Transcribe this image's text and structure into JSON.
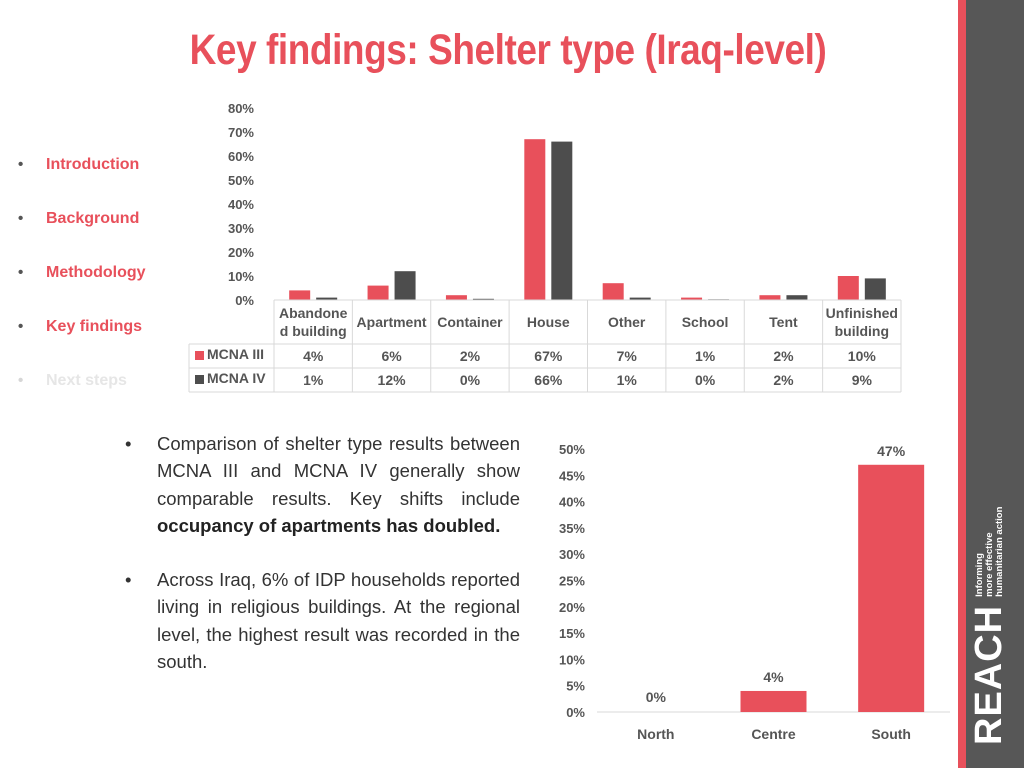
{
  "title": "Key findings: Shelter type (Iraq-level)",
  "nav": [
    {
      "label": "Introduction",
      "faded": false
    },
    {
      "label": "Background",
      "faded": false
    },
    {
      "label": "Methodology",
      "faded": false
    },
    {
      "label": "Key findings",
      "faded": false
    },
    {
      "label": "Next steps",
      "faded": true
    }
  ],
  "bullets": [
    {
      "pre": "Comparison of shelter type results between MCNA III and MCNA IV generally show comparable results.  Key shifts include ",
      "bold": "occupancy of apartments has doubled."
    },
    {
      "pre": "Across Iraq, 6% of IDP households reported living in religious buildings. At the regional level, the highest result was recorded in the south.",
      "bold": ""
    }
  ],
  "logo": {
    "main": "REACH",
    "tagline": [
      "Informing",
      "more effective",
      "humanitarian action"
    ]
  },
  "colors": {
    "accent": "#e8505b",
    "series_dark": "#4d4d4d",
    "sidebar_bar": "#575757"
  },
  "chart_data": [
    {
      "type": "bar",
      "categories": [
        "Abandoned building",
        "Apartment",
        "Container",
        "House",
        "Other",
        "School",
        "Tent",
        "Unfinished building"
      ],
      "category_display": [
        [
          "Abandone",
          "d building"
        ],
        [
          "Apartment"
        ],
        [
          "Container"
        ],
        [
          "House"
        ],
        [
          "Other"
        ],
        [
          "School"
        ],
        [
          "Tent"
        ],
        [
          "Unfinished",
          "building"
        ]
      ],
      "series": [
        {
          "name": "MCNA III",
          "color": "#e8505b",
          "values": [
            4,
            6,
            2,
            67,
            7,
            1,
            2,
            10
          ],
          "labels": [
            "4%",
            "6%",
            "2%",
            "67%",
            "7%",
            "1%",
            "2%",
            "10%"
          ]
        },
        {
          "name": "MCNA IV",
          "color": "#4d4d4d",
          "values": [
            1,
            12,
            0.5,
            66,
            1,
            0.3,
            2,
            9
          ],
          "labels": [
            "1%",
            "12%",
            "0%",
            "66%",
            "1%",
            "0%",
            "2%",
            "9%"
          ]
        }
      ],
      "yticks": [
        "0%",
        "10%",
        "20%",
        "30%",
        "40%",
        "50%",
        "60%",
        "70%",
        "80%"
      ],
      "ylim": [
        0,
        80
      ],
      "data_table": true
    },
    {
      "type": "bar",
      "categories": [
        "North",
        "Centre",
        "South"
      ],
      "values": [
        0,
        4,
        47
      ],
      "labels": [
        "0%",
        "4%",
        "47%"
      ],
      "yticks": [
        "0%",
        "5%",
        "10%",
        "15%",
        "20%",
        "25%",
        "30%",
        "35%",
        "40%",
        "45%",
        "50%"
      ],
      "ylim": [
        0,
        50
      ],
      "color": "#e8505b"
    }
  ]
}
